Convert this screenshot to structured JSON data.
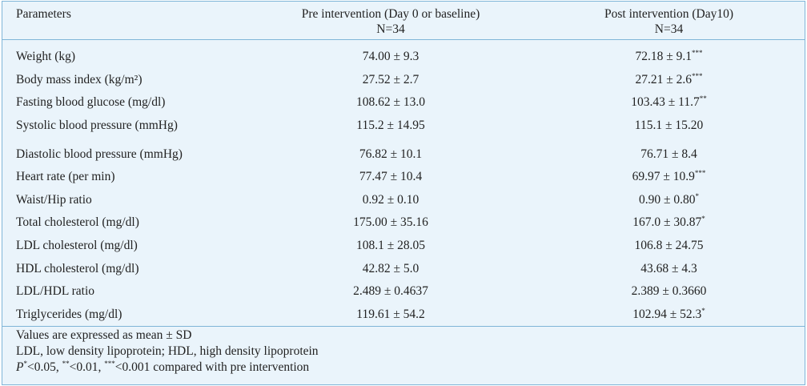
{
  "table": {
    "headers": {
      "col1": "Parameters",
      "col2_line1": "Pre intervention (Day 0 or baseline)",
      "col2_line2": "N=34",
      "col3_line1": "Post intervention (Day10)",
      "col3_line2": "N=34"
    },
    "rows": [
      {
        "param": "Weight (kg)",
        "pre": "74.00 ± 9.3",
        "post": "72.18 ± 9.1",
        "sig": "***"
      },
      {
        "param": "Body mass index (kg/m²)",
        "pre": "27.52 ± 2.7",
        "post": "27.21 ± 2.6",
        "sig": "***"
      },
      {
        "param": "Fasting blood glucose (mg/dl)",
        "pre": "108.62 ± 13.0",
        "post": "103.43 ± 11.7",
        "sig": "**"
      },
      {
        "param": "Systolic blood pressure (mmHg)",
        "pre": "115.2 ± 14.95",
        "post": "115.1 ± 15.20",
        "sig": ""
      },
      {
        "param": "Diastolic blood pressure (mmHg)",
        "pre": "76.82 ± 10.1",
        "post": "76.71 ± 8.4",
        "sig": ""
      },
      {
        "param": "Heart rate (per min)",
        "pre": "77.47 ± 10.4",
        "post": "69.97 ± 10.9",
        "sig": "***"
      },
      {
        "param": "Waist/Hip ratio",
        "pre": "0.92 ± 0.10",
        "post": "0.90 ± 0.80",
        "sig": "*"
      },
      {
        "param": "Total cholesterol (mg/dl)",
        "pre": "175.00 ± 35.16",
        "post": "167.0 ± 30.87",
        "sig": "*"
      },
      {
        "param": "LDL cholesterol (mg/dl)",
        "pre": "108.1 ± 28.05",
        "post": "106.8 ± 24.75",
        "sig": ""
      },
      {
        "param": "HDL cholesterol (mg/dl)",
        "pre": "42.82 ± 5.0",
        "post": "43.68 ± 4.3",
        "sig": ""
      },
      {
        "param": "LDL/HDL ratio",
        "pre": "2.489 ± 0.4637",
        "post": "2.389 ± 0.3660",
        "sig": ""
      },
      {
        "param": "Triglycerides (mg/dl)",
        "pre": "119.61 ± 54.2",
        "post": "102.94 ± 52.3",
        "sig": "*"
      }
    ],
    "footnotes": {
      "line1": "Values are expressed as mean ± SD",
      "line2": "LDL, low density lipoprotein; HDL, high density lipoprotein",
      "line3_p": "P",
      "line3_s1": "*",
      "line3_t1": "<0.05, ",
      "line3_s2": "**",
      "line3_t2": "<0.01, ",
      "line3_s3": "***",
      "line3_t3": "<0.001 compared with pre intervention"
    },
    "colors": {
      "background": "#eaf4fb",
      "border": "#7fb5d8",
      "text": "#222222"
    }
  }
}
